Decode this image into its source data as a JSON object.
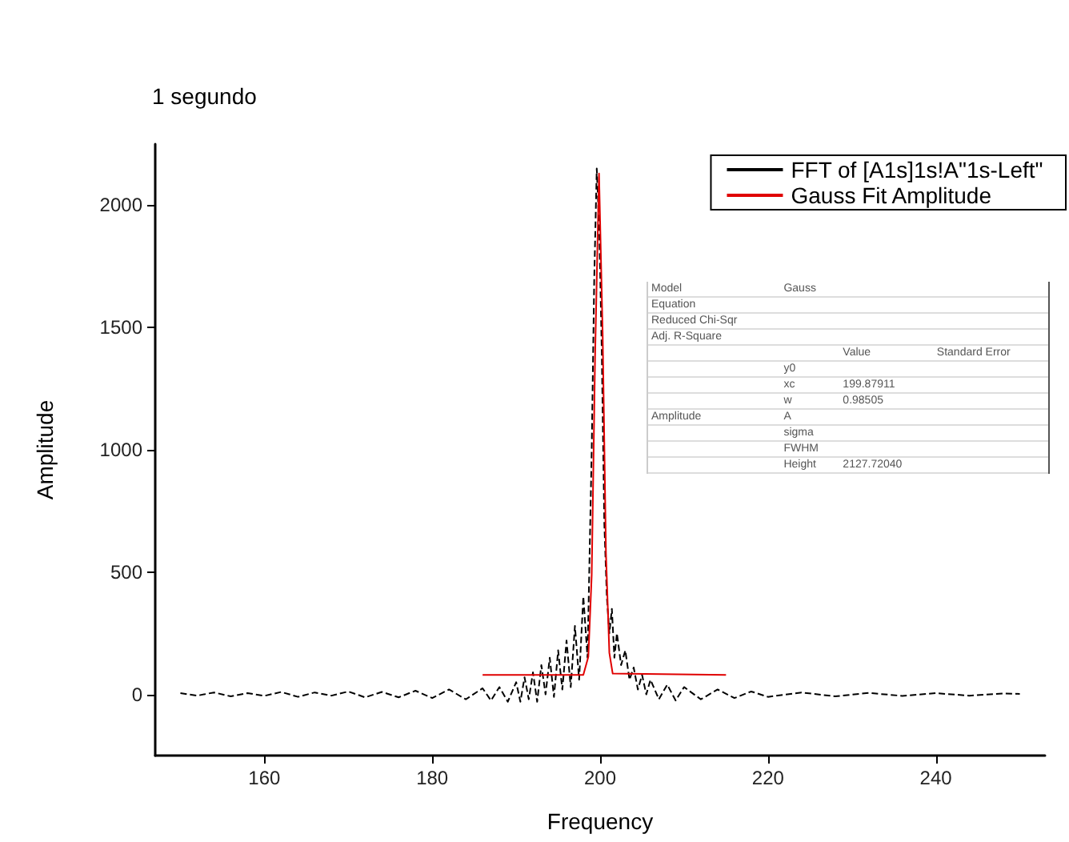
{
  "chart_data": {
    "type": "line",
    "title": "1 segundo",
    "xlabel": "Frequency",
    "ylabel": "Amplitude",
    "xlim": [
      147,
      253
    ],
    "xticks": [
      160,
      180,
      200,
      220,
      240
    ],
    "ylim": [
      -250,
      2250
    ],
    "yticks": [
      0,
      500,
      1000,
      1500,
      2000
    ],
    "grid": false,
    "legend": "top right",
    "series": [
      {
        "name": "FFT of [A1s]1s!A\"1s-Left\"",
        "color": "#000000",
        "line_style": "dashed",
        "x": [
          150,
          152,
          154,
          156,
          158,
          160,
          162,
          164,
          166,
          168,
          170,
          172,
          174,
          176,
          178,
          180,
          182,
          184,
          186,
          187,
          188,
          189,
          190,
          190.5,
          191,
          191.5,
          192,
          192.5,
          193,
          193.5,
          194,
          194.5,
          195,
          195.5,
          196,
          196.5,
          197,
          197.5,
          198,
          198.5,
          199,
          199.3,
          199.6,
          199.9,
          200.2,
          200.5,
          200.8,
          201.1,
          201.4,
          201.7,
          202,
          202.5,
          203,
          203.5,
          204,
          204.5,
          205,
          205.5,
          206,
          207,
          208,
          209,
          210,
          212,
          214,
          216,
          218,
          220,
          224,
          228,
          232,
          236,
          240,
          244,
          248,
          250
        ],
        "values": [
          5,
          -5,
          8,
          -8,
          5,
          -6,
          10,
          -10,
          8,
          -5,
          12,
          -12,
          10,
          -12,
          15,
          -15,
          20,
          -20,
          25,
          -25,
          30,
          -30,
          50,
          -30,
          70,
          -20,
          90,
          -30,
          120,
          0,
          150,
          -10,
          180,
          20,
          220,
          30,
          280,
          60,
          400,
          150,
          1000,
          1700,
          2150,
          1900,
          1400,
          700,
          400,
          250,
          350,
          150,
          250,
          120,
          180,
          60,
          110,
          20,
          80,
          0,
          60,
          -20,
          40,
          -25,
          30,
          -20,
          20,
          -15,
          12,
          -10,
          8,
          -8,
          6,
          -6,
          5,
          -5,
          4,
          2
        ]
      },
      {
        "name": "Gauss Fit Amplitude",
        "color": "#e00000",
        "line_style": "solid",
        "x": [
          186,
          198,
          198.6,
          199,
          199.4,
          199.87,
          200.3,
          200.7,
          201.1,
          201.5,
          215
        ],
        "values": [
          80,
          80,
          154,
          490,
          1380,
          2130,
          1480,
          575,
          170,
          85,
          80
        ]
      }
    ],
    "annotations": [
      "Model",
      "Gauss",
      "Equation",
      "Reduced Chi-Sqr",
      "Adj. R-Square",
      "Value",
      "Standard Error",
      "Amplitude",
      "y0",
      "xc",
      "w",
      "A",
      "sigma",
      "FWHM",
      "Height",
      "199.87911",
      "0.98505",
      "2127.72040"
    ]
  }
}
